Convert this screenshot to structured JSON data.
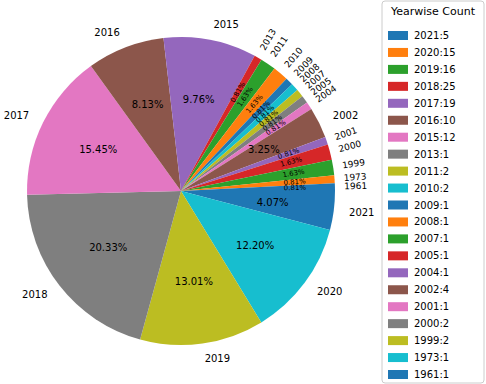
{
  "chart_data": {
    "type": "pie",
    "categories": [
      "2021",
      "2020",
      "2019",
      "2018",
      "2017",
      "2016",
      "2015",
      "2013",
      "2011",
      "2010",
      "2009",
      "2008",
      "2007",
      "2005",
      "2004",
      "2002",
      "2001",
      "2000",
      "1999",
      "1973",
      "1961"
    ],
    "values": [
      4.07,
      12.2,
      13.01,
      20.33,
      15.45,
      8.13,
      9.76,
      0.81,
      1.63,
      1.63,
      0.81,
      0.81,
      0.81,
      0.81,
      0.81,
      3.25,
      0.81,
      1.63,
      1.63,
      0.81,
      0.81
    ],
    "value_labels": [
      "4.07%",
      "12.20%",
      "13.01%",
      "20.33%",
      "15.45%",
      "8.13%",
      "9.76%",
      "0.81%",
      "1.63%",
      "1.63%",
      "0.81%",
      "0.81%",
      "0.81%",
      "0.81%",
      "0.81%",
      "3.25%",
      "0.81%",
      "1.63%",
      "1.63%",
      "0.81%",
      "0.81%"
    ],
    "data_labels": true,
    "colors": [
      "#1f77b4",
      "#17becf",
      "#bcbd22",
      "#7f7f7f",
      "#e377c2",
      "#8c564b",
      "#9467bd",
      "#d62728",
      "#2ca02c",
      "#ff7f0e",
      "#1f77b4",
      "#17becf",
      "#bcbd22",
      "#7f7f7f",
      "#e377c2",
      "#8c564b",
      "#9467bd",
      "#d62728",
      "#2ca02c",
      "#ff7f0e",
      "#1f77b4"
    ],
    "legend": "right",
    "legend_title": "Yearwise Count",
    "legend_labels": [
      "2021:5",
      "2020:15",
      "2019:16",
      "2018:25",
      "2017:19",
      "2016:10",
      "2015:12",
      "2013:1",
      "2011:2",
      "2010:2",
      "2009:1",
      "2008:1",
      "2007:1",
      "2005:1",
      "2004:1",
      "2002:4",
      "2001:1",
      "2000:2",
      "1999:2",
      "1973:1",
      "1961:1"
    ],
    "legend_colors": [
      "#1f77b4",
      "#ff7f0e",
      "#2ca02c",
      "#d62728",
      "#9467bd",
      "#8c564b",
      "#e377c2",
      "#7f7f7f",
      "#bcbd22",
      "#17becf",
      "#1f77b4",
      "#ff7f0e",
      "#2ca02c",
      "#d62728",
      "#9467bd",
      "#8c564b",
      "#e377c2",
      "#7f7f7f",
      "#bcbd22",
      "#17becf",
      "#1f77b4"
    ]
  }
}
